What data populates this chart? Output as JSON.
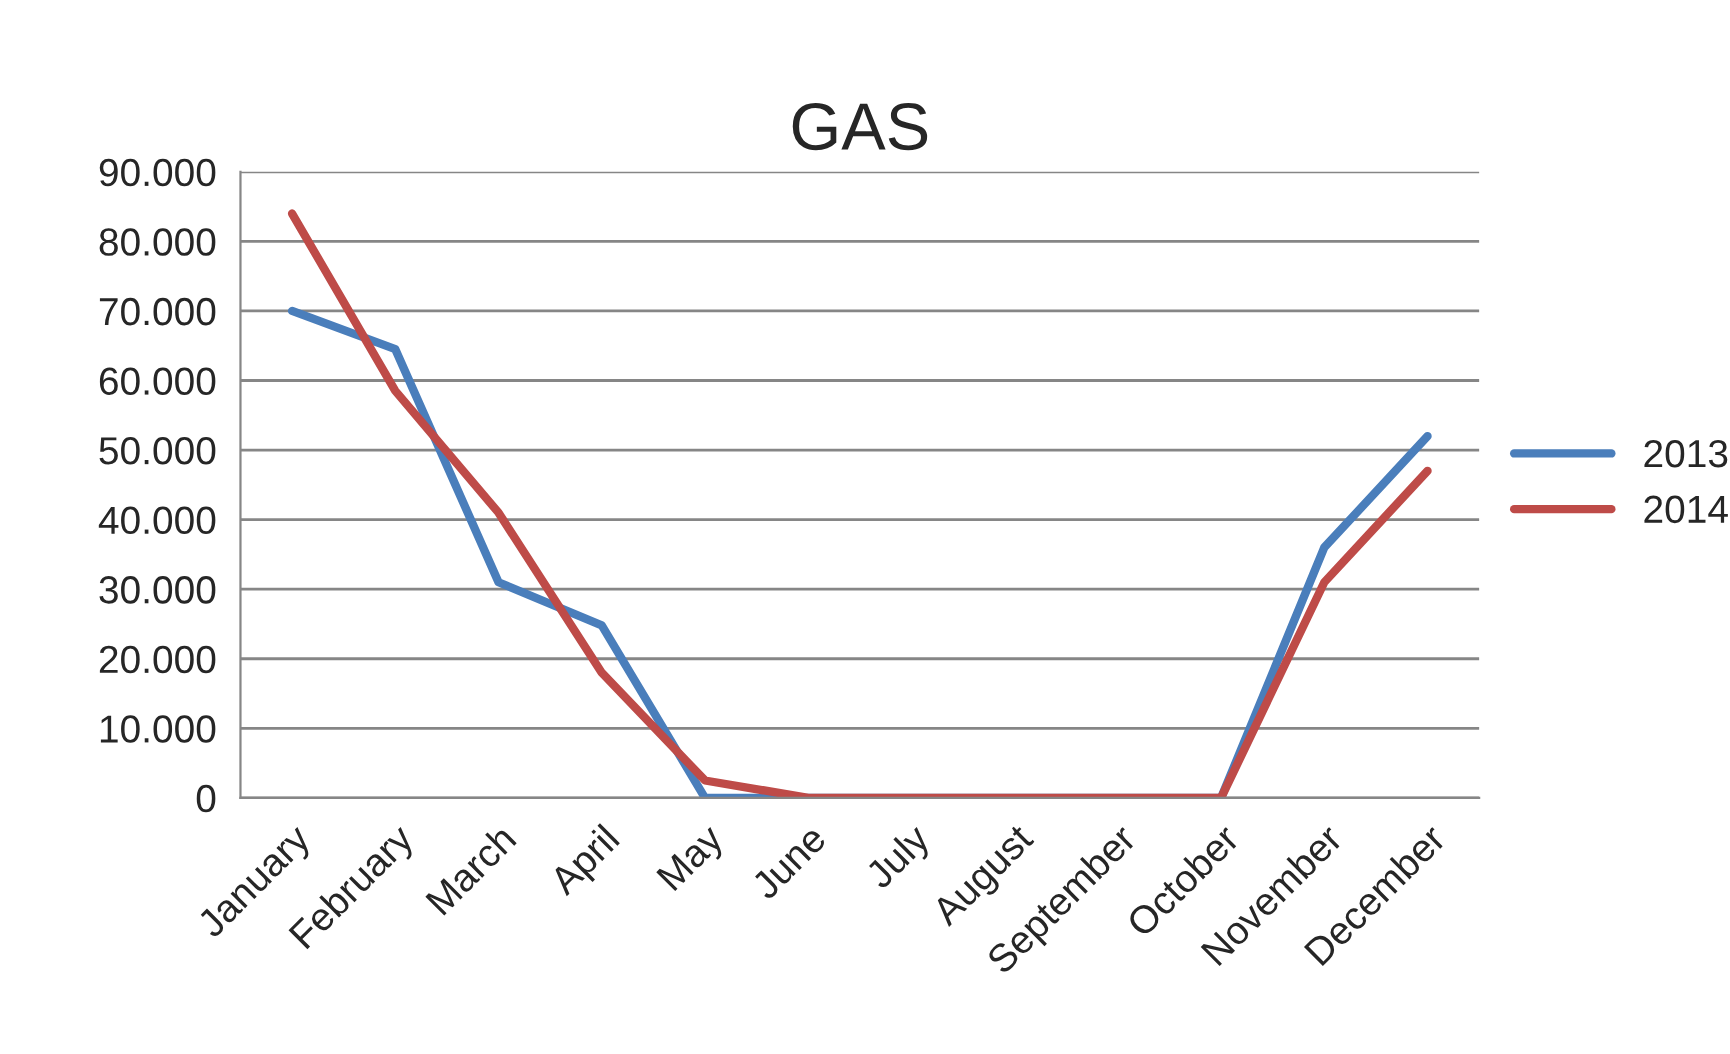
{
  "chart_data": {
    "type": "line",
    "title": "GAS",
    "categories": [
      "January",
      "February",
      "March",
      "April",
      "May",
      "June",
      "July",
      "August",
      "September",
      "October",
      "November",
      "December"
    ],
    "series": [
      {
        "name": "2013",
        "color": "#4a7ebb",
        "values": [
          70000,
          64500,
          31000,
          24800,
          0,
          0,
          0,
          0,
          0,
          0,
          36000,
          52000
        ]
      },
      {
        "name": "2014",
        "color": "#be4b48",
        "values": [
          84000,
          58500,
          41000,
          18000,
          2500,
          0,
          0,
          0,
          0,
          0,
          31000,
          47000
        ]
      }
    ],
    "ylim": [
      0,
      90000
    ],
    "yticks": [
      {
        "value": 0,
        "label": "0"
      },
      {
        "value": 10000,
        "label": "10.000"
      },
      {
        "value": 20000,
        "label": "20.000"
      },
      {
        "value": 30000,
        "label": "30.000"
      },
      {
        "value": 40000,
        "label": "40.000"
      },
      {
        "value": 50000,
        "label": "50.000"
      },
      {
        "value": 60000,
        "label": "60.000"
      },
      {
        "value": 70000,
        "label": "70.000"
      },
      {
        "value": 80000,
        "label": "80.000"
      },
      {
        "value": 90000,
        "label": "90.000"
      }
    ],
    "grid": "y",
    "legend": "right",
    "marker": "none",
    "line_style": "solid"
  }
}
